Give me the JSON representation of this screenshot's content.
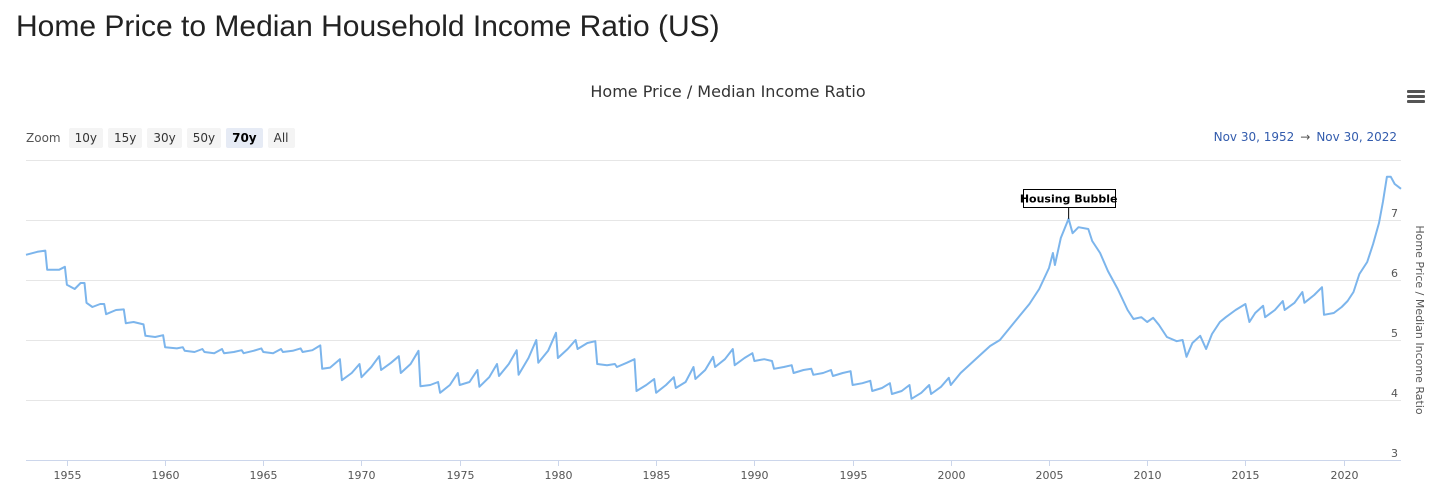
{
  "page": {
    "title": "Home Price to Median Household Income Ratio (US)"
  },
  "toolbar": {
    "zoom_label": "Zoom",
    "zoom_buttons": [
      "10y",
      "15y",
      "30y",
      "50y",
      "70y",
      "All"
    ],
    "active_zoom": "70y",
    "range_from": "Nov 30, 1952",
    "range_arrow": "→",
    "range_to": "Nov 30, 2022"
  },
  "colors": {
    "series": "#7cb5ec",
    "grid": "#e6e6e6",
    "accent": "#335cad"
  },
  "chart_data": {
    "type": "line",
    "title": "Home Price / Median Income Ratio",
    "ylabel": "Home Price / Median Income Ratio",
    "xlabel": "",
    "xlim": [
      1952.92,
      2022.92
    ],
    "ylim": [
      3,
      8
    ],
    "y_ticks": [
      3,
      4,
      5,
      6,
      7
    ],
    "x_ticks": [
      1955,
      1960,
      1965,
      1970,
      1975,
      1980,
      1985,
      1990,
      1995,
      2000,
      2005,
      2010,
      2015,
      2020
    ],
    "grid": true,
    "legend": "none",
    "annotations": [
      {
        "x": 2006.0,
        "y": 7.02,
        "text": "Housing Bubble"
      }
    ],
    "series": [
      {
        "name": "Home Price / Median Income Ratio",
        "points": [
          [
            1952.92,
            6.42
          ],
          [
            1953.5,
            6.47
          ],
          [
            1953.9,
            6.49
          ],
          [
            1954.0,
            6.17
          ],
          [
            1954.6,
            6.17
          ],
          [
            1954.9,
            6.22
          ],
          [
            1955.0,
            5.92
          ],
          [
            1955.4,
            5.85
          ],
          [
            1955.7,
            5.95
          ],
          [
            1955.9,
            5.95
          ],
          [
            1956.0,
            5.62
          ],
          [
            1956.3,
            5.55
          ],
          [
            1956.7,
            5.6
          ],
          [
            1956.9,
            5.6
          ],
          [
            1957.0,
            5.43
          ],
          [
            1957.5,
            5.5
          ],
          [
            1957.9,
            5.51
          ],
          [
            1958.0,
            5.28
          ],
          [
            1958.4,
            5.3
          ],
          [
            1958.9,
            5.26
          ],
          [
            1959.0,
            5.07
          ],
          [
            1959.5,
            5.05
          ],
          [
            1959.9,
            5.08
          ],
          [
            1960.0,
            4.88
          ],
          [
            1960.6,
            4.86
          ],
          [
            1960.9,
            4.88
          ],
          [
            1961.0,
            4.82
          ],
          [
            1961.5,
            4.8
          ],
          [
            1961.9,
            4.85
          ],
          [
            1962.0,
            4.8
          ],
          [
            1962.5,
            4.78
          ],
          [
            1962.9,
            4.85
          ],
          [
            1963.0,
            4.78
          ],
          [
            1963.5,
            4.8
          ],
          [
            1963.9,
            4.83
          ],
          [
            1964.0,
            4.78
          ],
          [
            1964.5,
            4.82
          ],
          [
            1964.9,
            4.86
          ],
          [
            1965.0,
            4.8
          ],
          [
            1965.5,
            4.78
          ],
          [
            1965.9,
            4.85
          ],
          [
            1966.0,
            4.8
          ],
          [
            1966.5,
            4.82
          ],
          [
            1966.9,
            4.86
          ],
          [
            1967.0,
            4.8
          ],
          [
            1967.5,
            4.83
          ],
          [
            1967.9,
            4.91
          ],
          [
            1968.0,
            4.52
          ],
          [
            1968.4,
            4.54
          ],
          [
            1968.9,
            4.68
          ],
          [
            1969.0,
            4.33
          ],
          [
            1969.5,
            4.45
          ],
          [
            1969.9,
            4.6
          ],
          [
            1970.0,
            4.38
          ],
          [
            1970.5,
            4.55
          ],
          [
            1970.9,
            4.73
          ],
          [
            1971.0,
            4.5
          ],
          [
            1971.5,
            4.62
          ],
          [
            1971.9,
            4.73
          ],
          [
            1972.0,
            4.45
          ],
          [
            1972.5,
            4.6
          ],
          [
            1972.9,
            4.82
          ],
          [
            1973.0,
            4.23
          ],
          [
            1973.5,
            4.25
          ],
          [
            1973.9,
            4.3
          ],
          [
            1974.0,
            4.12
          ],
          [
            1974.5,
            4.25
          ],
          [
            1974.9,
            4.45
          ],
          [
            1975.0,
            4.25
          ],
          [
            1975.5,
            4.3
          ],
          [
            1975.9,
            4.5
          ],
          [
            1976.0,
            4.22
          ],
          [
            1976.5,
            4.38
          ],
          [
            1976.9,
            4.6
          ],
          [
            1977.0,
            4.4
          ],
          [
            1977.5,
            4.6
          ],
          [
            1977.9,
            4.83
          ],
          [
            1978.0,
            4.42
          ],
          [
            1978.5,
            4.7
          ],
          [
            1978.9,
            5.0
          ],
          [
            1979.0,
            4.62
          ],
          [
            1979.5,
            4.82
          ],
          [
            1979.9,
            5.12
          ],
          [
            1980.0,
            4.7
          ],
          [
            1980.5,
            4.85
          ],
          [
            1980.9,
            5.0
          ],
          [
            1981.0,
            4.85
          ],
          [
            1981.5,
            4.95
          ],
          [
            1981.9,
            4.98
          ],
          [
            1982.0,
            4.6
          ],
          [
            1982.5,
            4.58
          ],
          [
            1982.9,
            4.6
          ],
          [
            1983.0,
            4.55
          ],
          [
            1983.5,
            4.62
          ],
          [
            1983.9,
            4.68
          ],
          [
            1984.0,
            4.15
          ],
          [
            1984.5,
            4.25
          ],
          [
            1984.9,
            4.35
          ],
          [
            1985.0,
            4.12
          ],
          [
            1985.5,
            4.25
          ],
          [
            1985.9,
            4.38
          ],
          [
            1986.0,
            4.2
          ],
          [
            1986.5,
            4.3
          ],
          [
            1986.9,
            4.55
          ],
          [
            1987.0,
            4.35
          ],
          [
            1987.5,
            4.5
          ],
          [
            1987.9,
            4.72
          ],
          [
            1988.0,
            4.55
          ],
          [
            1988.5,
            4.68
          ],
          [
            1988.9,
            4.85
          ],
          [
            1989.0,
            4.58
          ],
          [
            1989.5,
            4.7
          ],
          [
            1989.9,
            4.78
          ],
          [
            1990.0,
            4.65
          ],
          [
            1990.5,
            4.68
          ],
          [
            1990.9,
            4.65
          ],
          [
            1991.0,
            4.52
          ],
          [
            1991.5,
            4.55
          ],
          [
            1991.9,
            4.58
          ],
          [
            1992.0,
            4.45
          ],
          [
            1992.5,
            4.5
          ],
          [
            1992.9,
            4.52
          ],
          [
            1993.0,
            4.42
          ],
          [
            1993.5,
            4.45
          ],
          [
            1993.9,
            4.5
          ],
          [
            1994.0,
            4.4
          ],
          [
            1994.5,
            4.45
          ],
          [
            1994.9,
            4.48
          ],
          [
            1995.0,
            4.25
          ],
          [
            1995.5,
            4.28
          ],
          [
            1995.9,
            4.32
          ],
          [
            1996.0,
            4.15
          ],
          [
            1996.5,
            4.2
          ],
          [
            1996.9,
            4.28
          ],
          [
            1997.0,
            4.1
          ],
          [
            1997.5,
            4.15
          ],
          [
            1997.9,
            4.25
          ],
          [
            1998.0,
            4.02
          ],
          [
            1998.5,
            4.12
          ],
          [
            1998.9,
            4.25
          ],
          [
            1999.0,
            4.1
          ],
          [
            1999.5,
            4.22
          ],
          [
            1999.9,
            4.37
          ],
          [
            2000.0,
            4.25
          ],
          [
            2000.5,
            4.45
          ],
          [
            2001.0,
            4.6
          ],
          [
            2001.5,
            4.75
          ],
          [
            2002.0,
            4.9
          ],
          [
            2002.5,
            5.0
          ],
          [
            2003.0,
            5.2
          ],
          [
            2003.5,
            5.4
          ],
          [
            2004.0,
            5.6
          ],
          [
            2004.5,
            5.85
          ],
          [
            2005.0,
            6.2
          ],
          [
            2005.2,
            6.45
          ],
          [
            2005.3,
            6.25
          ],
          [
            2005.6,
            6.7
          ],
          [
            2006.0,
            7.02
          ],
          [
            2006.2,
            6.78
          ],
          [
            2006.5,
            6.88
          ],
          [
            2007.0,
            6.85
          ],
          [
            2007.2,
            6.65
          ],
          [
            2007.6,
            6.45
          ],
          [
            2008.0,
            6.15
          ],
          [
            2008.5,
            5.85
          ],
          [
            2009.0,
            5.5
          ],
          [
            2009.3,
            5.35
          ],
          [
            2009.7,
            5.38
          ],
          [
            2010.0,
            5.3
          ],
          [
            2010.3,
            5.37
          ],
          [
            2010.6,
            5.25
          ],
          [
            2011.0,
            5.05
          ],
          [
            2011.5,
            4.98
          ],
          [
            2011.8,
            5.0
          ],
          [
            2012.0,
            4.72
          ],
          [
            2012.3,
            4.95
          ],
          [
            2012.7,
            5.07
          ],
          [
            2013.0,
            4.85
          ],
          [
            2013.3,
            5.1
          ],
          [
            2013.7,
            5.3
          ],
          [
            2014.0,
            5.38
          ],
          [
            2014.5,
            5.5
          ],
          [
            2015.0,
            5.6
          ],
          [
            2015.2,
            5.3
          ],
          [
            2015.5,
            5.45
          ],
          [
            2015.9,
            5.57
          ],
          [
            2016.0,
            5.38
          ],
          [
            2016.5,
            5.5
          ],
          [
            2016.9,
            5.65
          ],
          [
            2017.0,
            5.5
          ],
          [
            2017.5,
            5.62
          ],
          [
            2017.9,
            5.8
          ],
          [
            2018.0,
            5.62
          ],
          [
            2018.5,
            5.75
          ],
          [
            2018.9,
            5.88
          ],
          [
            2019.0,
            5.42
          ],
          [
            2019.5,
            5.45
          ],
          [
            2019.9,
            5.55
          ],
          [
            2020.2,
            5.65
          ],
          [
            2020.5,
            5.8
          ],
          [
            2020.8,
            6.1
          ],
          [
            2021.0,
            6.2
          ],
          [
            2021.2,
            6.3
          ],
          [
            2021.5,
            6.6
          ],
          [
            2021.8,
            6.95
          ],
          [
            2022.0,
            7.3
          ],
          [
            2022.2,
            7.72
          ],
          [
            2022.4,
            7.72
          ],
          [
            2022.6,
            7.6
          ],
          [
            2022.92,
            7.52
          ]
        ]
      }
    ]
  }
}
